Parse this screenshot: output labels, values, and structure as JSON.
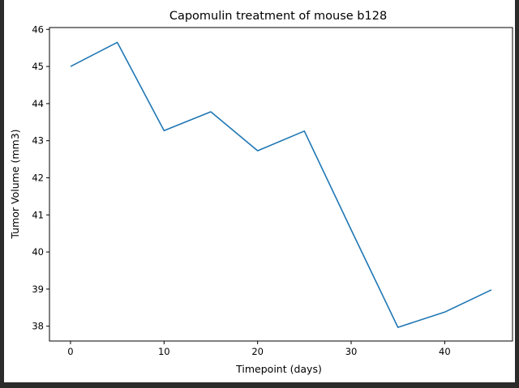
{
  "chart_data": {
    "type": "line",
    "title": "Capomulin treatment of mouse b128",
    "xlabel": "Timepoint (days)",
    "ylabel": "Tumor Volume (mm3)",
    "xlim": [
      -2.25,
      47.25
    ],
    "ylim": [
      37.6,
      46.05
    ],
    "xticks": [
      0,
      10,
      20,
      30,
      40
    ],
    "yticks": [
      38,
      39,
      40,
      41,
      42,
      43,
      44,
      45,
      46
    ],
    "grid": false,
    "series": [
      {
        "color": "#1f77b4",
        "x": [
          0,
          5,
          10,
          15,
          20,
          25,
          30,
          35,
          40,
          45
        ],
        "y": [
          45.0,
          45.65,
          43.27,
          43.78,
          42.73,
          43.26,
          40.6,
          37.97,
          38.38,
          38.98
        ]
      }
    ]
  }
}
